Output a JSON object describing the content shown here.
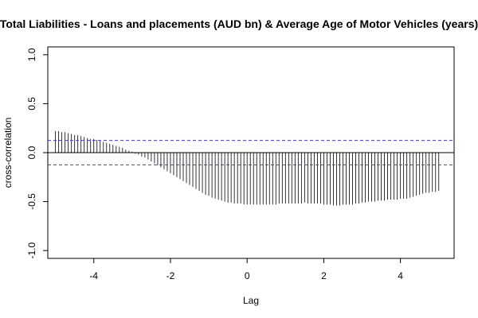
{
  "chart_data": {
    "type": "bar",
    "title": "Total Liabilities - Loans and placements (AUD bn) & Average Age of Motor Vehicles (years)",
    "xlabel": "Lag",
    "ylabel": "cross-correlation",
    "xlim": [
      -5.2,
      5.4
    ],
    "ylim": [
      -1.0,
      1.0
    ],
    "x_ticks": [
      -4,
      -2,
      0,
      2,
      4
    ],
    "y_ticks": [
      -1.0,
      -0.5,
      0.0,
      0.5,
      1.0
    ],
    "x_tick_labels": [
      "-4",
      "-2",
      "0",
      "2",
      "4"
    ],
    "y_tick_labels": [
      "-1.0",
      "-0.5",
      "0.0",
      "0.5",
      "1.0"
    ],
    "confidence_level": 0.125,
    "confidence_color": "#3b3bd6",
    "bar_color": "#000000",
    "lags": [
      -5.0,
      -4.9167,
      -4.8333,
      -4.75,
      -4.6667,
      -4.5833,
      -4.5,
      -4.4167,
      -4.3333,
      -4.25,
      -4.1667,
      -4.0833,
      -4.0,
      -3.9167,
      -3.8333,
      -3.75,
      -3.6667,
      -3.5833,
      -3.5,
      -3.4167,
      -3.3333,
      -3.25,
      -3.1667,
      -3.0833,
      -3.0,
      -2.9167,
      -2.8333,
      -2.75,
      -2.6667,
      -2.5833,
      -2.5,
      -2.4167,
      -2.3333,
      -2.25,
      -2.1667,
      -2.0833,
      -2.0,
      -1.9167,
      -1.8333,
      -1.75,
      -1.6667,
      -1.5833,
      -1.5,
      -1.4167,
      -1.3333,
      -1.25,
      -1.1667,
      -1.0833,
      -1.0,
      -0.9167,
      -0.8333,
      -0.75,
      -0.6667,
      -0.5833,
      -0.5,
      -0.4167,
      -0.3333,
      -0.25,
      -0.1667,
      -0.0833,
      0.0,
      0.0833,
      0.1667,
      0.25,
      0.3333,
      0.4167,
      0.5,
      0.5833,
      0.6667,
      0.75,
      0.8333,
      0.9167,
      1.0,
      1.0833,
      1.1667,
      1.25,
      1.3333,
      1.4167,
      1.5,
      1.5833,
      1.6667,
      1.75,
      1.8333,
      1.9167,
      2.0,
      2.0833,
      2.1667,
      2.25,
      2.3333,
      2.4167,
      2.5,
      2.5833,
      2.6667,
      2.75,
      2.8333,
      2.9167,
      3.0,
      3.0833,
      3.1667,
      3.25,
      3.3333,
      3.4167,
      3.5,
      3.5833,
      3.6667,
      3.75,
      3.8333,
      3.9167,
      4.0,
      4.0833,
      4.1667,
      4.25,
      4.3333,
      4.4167,
      4.5,
      4.5833,
      4.6667,
      4.75,
      4.8333,
      4.9167,
      5.0
    ],
    "values": [
      0.22,
      0.22,
      0.21,
      0.21,
      0.2,
      0.19,
      0.18,
      0.18,
      0.17,
      0.16,
      0.15,
      0.14,
      0.14,
      0.13,
      0.12,
      0.11,
      0.1,
      0.09,
      0.08,
      0.07,
      0.06,
      0.05,
      0.03,
      0.02,
      0.01,
      -0.01,
      -0.02,
      -0.04,
      -0.05,
      -0.07,
      -0.09,
      -0.11,
      -0.13,
      -0.15,
      -0.17,
      -0.19,
      -0.21,
      -0.23,
      -0.25,
      -0.27,
      -0.29,
      -0.31,
      -0.33,
      -0.35,
      -0.37,
      -0.39,
      -0.41,
      -0.43,
      -0.44,
      -0.46,
      -0.47,
      -0.48,
      -0.49,
      -0.5,
      -0.51,
      -0.51,
      -0.52,
      -0.52,
      -0.52,
      -0.53,
      -0.53,
      -0.53,
      -0.53,
      -0.53,
      -0.53,
      -0.53,
      -0.53,
      -0.53,
      -0.53,
      -0.53,
      -0.52,
      -0.52,
      -0.52,
      -0.52,
      -0.52,
      -0.52,
      -0.52,
      -0.52,
      -0.51,
      -0.52,
      -0.52,
      -0.52,
      -0.52,
      -0.52,
      -0.53,
      -0.53,
      -0.53,
      -0.54,
      -0.54,
      -0.54,
      -0.53,
      -0.53,
      -0.53,
      -0.53,
      -0.52,
      -0.52,
      -0.51,
      -0.51,
      -0.5,
      -0.5,
      -0.5,
      -0.49,
      -0.49,
      -0.49,
      -0.48,
      -0.48,
      -0.48,
      -0.48,
      -0.47,
      -0.47,
      -0.47,
      -0.46,
      -0.45,
      -0.44,
      -0.43,
      -0.42,
      -0.41,
      -0.41,
      -0.4,
      -0.4,
      -0.39
    ]
  }
}
